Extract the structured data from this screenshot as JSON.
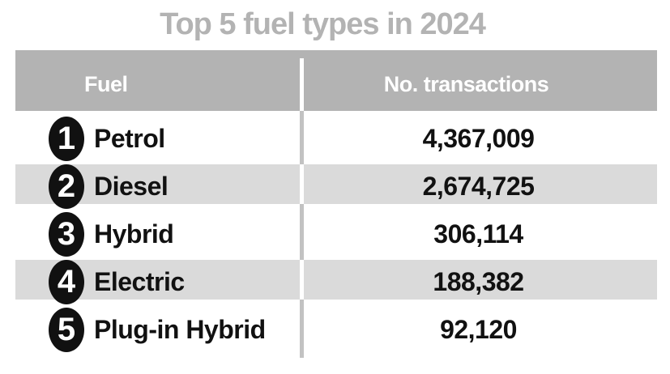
{
  "title": "Top 5 fuel types in 2024",
  "table": {
    "header": {
      "fuel": "Fuel",
      "transactions": "No. transactions"
    },
    "rows": [
      {
        "rank": "1",
        "fuel": "Petrol",
        "transactions": "4,367,009"
      },
      {
        "rank": "2",
        "fuel": "Diesel",
        "transactions": "2,674,725"
      },
      {
        "rank": "3",
        "fuel": "Hybrid",
        "transactions": "306,114"
      },
      {
        "rank": "4",
        "fuel": "Electric",
        "transactions": "188,382"
      },
      {
        "rank": "5",
        "fuel": "Plug-in Hybrid",
        "transactions": "92,120"
      }
    ]
  },
  "colors": {
    "page_bg": "#ffffff",
    "title_text": "#b3b3b3",
    "header_bg": "#b3b3b3",
    "header_text": "#ffffff",
    "stripe_bg": "#dadada",
    "divider_gray": "#c2c2c2",
    "badge_bg": "#111111",
    "badge_text": "#ffffff",
    "row_text": "#111111"
  },
  "chart_data": {
    "type": "table",
    "title": "Top 5 fuel types in 2024",
    "columns": [
      "Fuel",
      "No. transactions"
    ],
    "rows": [
      {
        "rank": 1,
        "fuel": "Petrol",
        "transactions": 4367009
      },
      {
        "rank": 2,
        "fuel": "Diesel",
        "transactions": 2674725
      },
      {
        "rank": 3,
        "fuel": "Hybrid",
        "transactions": 306114
      },
      {
        "rank": 4,
        "fuel": "Electric",
        "transactions": 188382
      },
      {
        "rank": 5,
        "fuel": "Plug-in Hybrid",
        "transactions": 92120
      }
    ],
    "layout": {
      "zebra_striping": true,
      "rank_badges": "black-oval",
      "value_alignment": "center"
    }
  }
}
